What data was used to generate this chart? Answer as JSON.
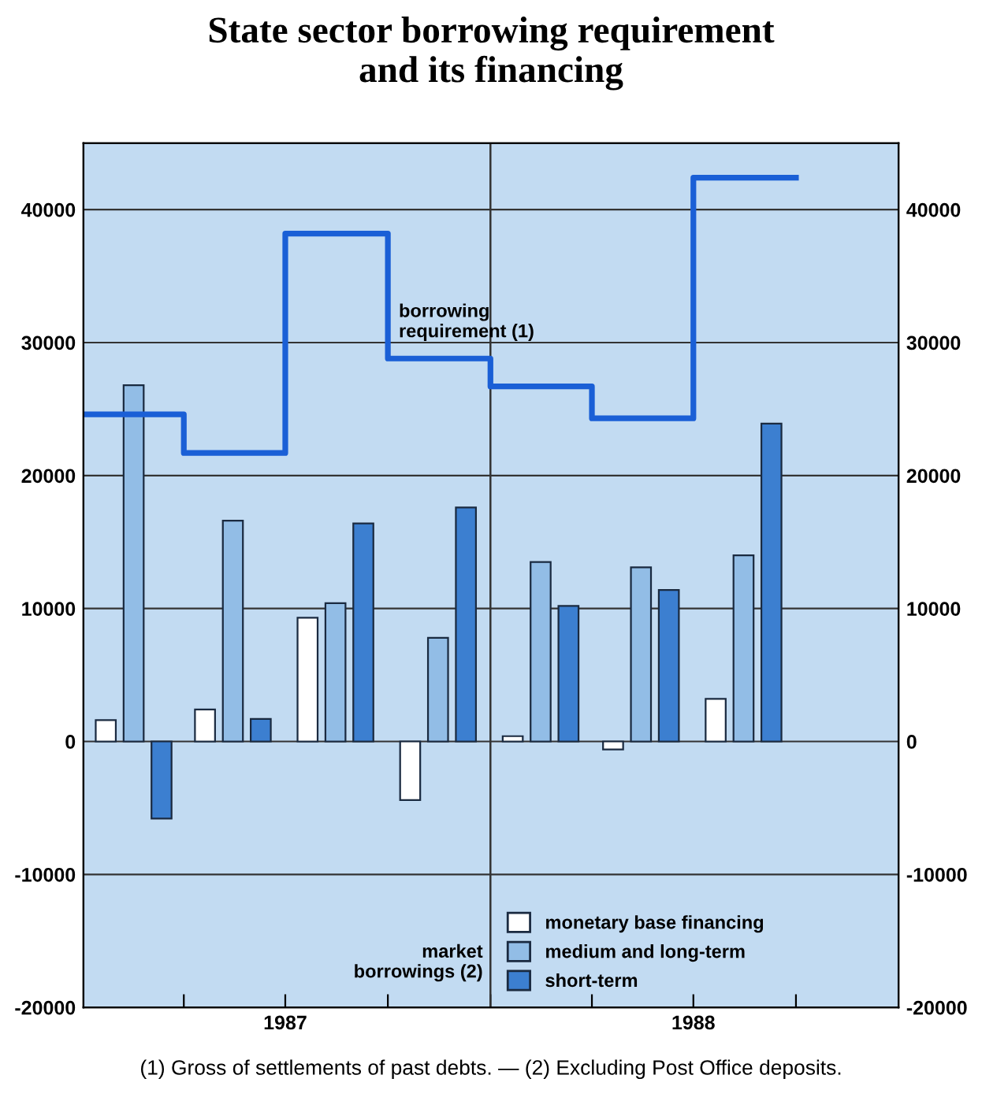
{
  "chart_data": {
    "type": "bar",
    "title": "State sector borrowing requirement\nand its financing",
    "x": [
      "1987-02-15",
      "1987-05-15",
      "1987-08-15",
      "1987-11-15",
      "1988-02-15",
      "1988-05-15",
      "1988-08-15"
    ],
    "series": [
      {
        "name": "monetary base financing",
        "color": "#ffffff",
        "values": [
          1600,
          2400,
          9300,
          -4400,
          400,
          -600,
          3200
        ]
      },
      {
        "name": "medium and long-term",
        "color": "#92bde6",
        "values": [
          26800,
          16600,
          10400,
          7800,
          13500,
          13100,
          14000
        ]
      },
      {
        "name": "short-term",
        "color": "#3c7fd0",
        "values": [
          -5800,
          1700,
          16400,
          17600,
          10200,
          11400,
          23900
        ]
      },
      {
        "type": "step",
        "name": "borrowing\nrequirement (1)",
        "color": "#1a5fd6",
        "x": [
          "1987-01-01",
          "1987-04-01",
          "1987-07-01",
          "1987-10-01",
          "1988-01-01",
          "1988-04-01",
          "1988-07-01",
          "1988-10-01"
        ],
        "values": [
          24600,
          21700,
          38200,
          28800,
          26700,
          24300,
          42400,
          42400
        ]
      }
    ],
    "xlim": [
      "1987-01-01",
      "1989-01-01"
    ],
    "xticks": [
      {
        "value": "1987-04-01",
        "label": null
      },
      {
        "value": "1987-07-01",
        "label": "1987"
      },
      {
        "value": "1987-10-01",
        "label": null
      },
      {
        "value": "1988-01-01",
        "label": null
      },
      {
        "value": "1988-04-01",
        "label": null
      },
      {
        "value": "1988-07-01",
        "label": "1988"
      },
      {
        "value": "1988-10-01",
        "label": null
      }
    ],
    "ylim": [
      -20000,
      45000
    ],
    "yticks": [
      -20000,
      -10000,
      0,
      10000,
      20000,
      30000,
      40000
    ],
    "y2lim": [
      -20000,
      45000
    ],
    "y2ticks": [
      -20000,
      -10000,
      0,
      10000,
      20000,
      30000,
      40000
    ],
    "ref_lines": [
      {
        "axis": "x",
        "value": "1988-01-01",
        "label": null,
        "color": "#333333"
      }
    ],
    "grid": "y",
    "legend": "bottom",
    "annotations": [
      "market\nborrowings (2)",
      "(1) Gross of settlements of past debts. — (2) Excluding Post Office deposits."
    ]
  }
}
